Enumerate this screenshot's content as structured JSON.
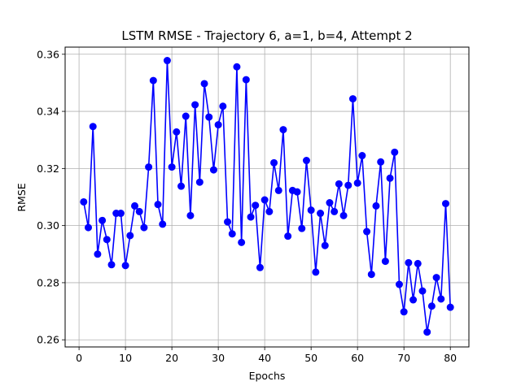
{
  "chart_data": {
    "type": "line",
    "title": "LSTM RMSE - Trajectory 6, a=1, b=4, Attempt 2",
    "xlabel": "Epochs",
    "ylabel": "RMSE",
    "xlim": [
      -3,
      84
    ],
    "ylim": [
      0.2575,
      0.3625
    ],
    "xticks": [
      0,
      10,
      20,
      30,
      40,
      50,
      60,
      70,
      80
    ],
    "yticks": [
      0.26,
      0.28,
      0.3,
      0.32,
      0.34,
      0.36
    ],
    "ytick_labels": [
      "0.26",
      "0.28",
      "0.30",
      "0.32",
      "0.34",
      "0.36"
    ],
    "grid": true,
    "line_color": "#0000ff",
    "marker": "circle",
    "series": [
      {
        "x": [
          1,
          2,
          3,
          4,
          5,
          6,
          7,
          8,
          9,
          10,
          11,
          12,
          13,
          14,
          15,
          16,
          17,
          18,
          19,
          20,
          21,
          22,
          23,
          24,
          25,
          26,
          27,
          28,
          29,
          30,
          31,
          32,
          33,
          34,
          35,
          36,
          37,
          38,
          39,
          40,
          41,
          42,
          43,
          44,
          45,
          46,
          47,
          48,
          49,
          50,
          51,
          52,
          53,
          54,
          55,
          56,
          57,
          58,
          59,
          60,
          61,
          62,
          63,
          64,
          65,
          66,
          67,
          68,
          69,
          70,
          71,
          72,
          73,
          74,
          75,
          76,
          77,
          78,
          79,
          80
        ],
        "values": [
          0.3083,
          0.2993,
          0.3347,
          0.29,
          0.3018,
          0.2951,
          0.2863,
          0.3043,
          0.3043,
          0.286,
          0.2965,
          0.3069,
          0.3049,
          0.2993,
          0.3205,
          0.3508,
          0.3074,
          0.3005,
          0.3578,
          0.3205,
          0.3328,
          0.3138,
          0.3383,
          0.3035,
          0.3423,
          0.3152,
          0.3497,
          0.338,
          0.3195,
          0.3353,
          0.3418,
          0.3013,
          0.2971,
          0.3556,
          0.2941,
          0.3511,
          0.303,
          0.3071,
          0.2853,
          0.309,
          0.3049,
          0.322,
          0.3123,
          0.3336,
          0.2963,
          0.3123,
          0.3118,
          0.299,
          0.3228,
          0.3054,
          0.2837,
          0.3043,
          0.293,
          0.308,
          0.3049,
          0.3146,
          0.3035,
          0.3141,
          0.3444,
          0.3149,
          0.3245,
          0.2979,
          0.2829,
          0.3069,
          0.3223,
          0.2875,
          0.3166,
          0.3257,
          0.2794,
          0.2698,
          0.287,
          0.274,
          0.2867,
          0.2771,
          0.2627,
          0.2718,
          0.2818,
          0.2743,
          0.3077,
          0.2714
        ]
      }
    ]
  }
}
